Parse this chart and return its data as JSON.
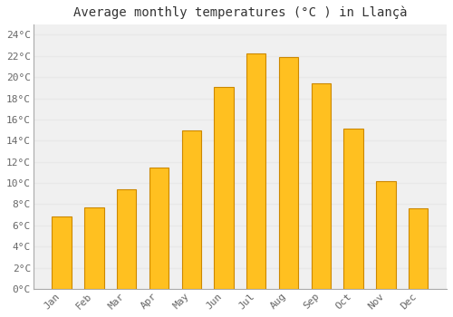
{
  "title": "Average monthly temperatures (°C ) in Llançà",
  "months": [
    "Jan",
    "Feb",
    "Mar",
    "Apr",
    "May",
    "Jun",
    "Jul",
    "Aug",
    "Sep",
    "Oct",
    "Nov",
    "Dec"
  ],
  "values": [
    6.8,
    7.7,
    9.4,
    11.5,
    15.0,
    19.1,
    22.2,
    21.9,
    19.4,
    15.1,
    10.2,
    7.6
  ],
  "bar_face_color": "#FFC020",
  "bar_edge_color": "#CC8800",
  "background_color": "#ffffff",
  "plot_bg_color": "#f0f0f0",
  "grid_color": "#e8e8e8",
  "ylim": [
    0,
    25
  ],
  "ytick_step": 2,
  "title_fontsize": 10,
  "tick_fontsize": 8,
  "tick_label_color": "#666666",
  "title_color": "#333333"
}
